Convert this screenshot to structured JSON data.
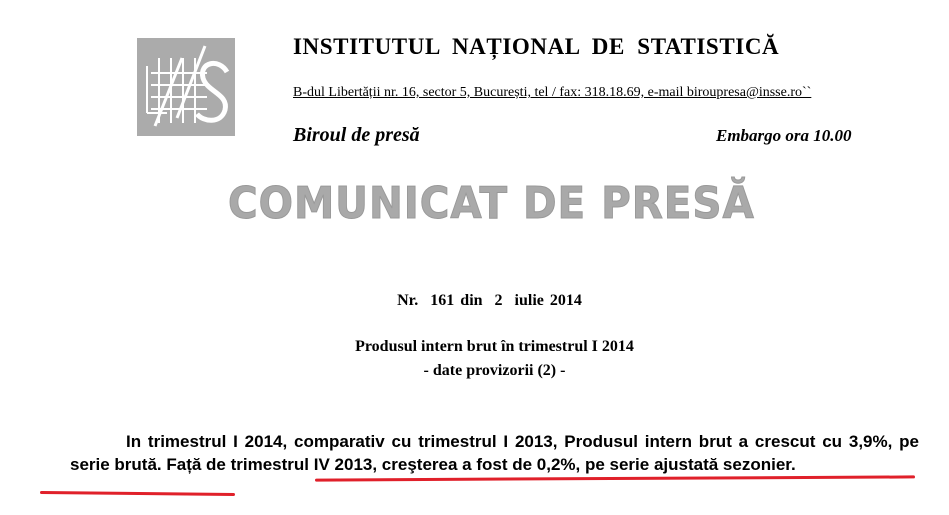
{
  "header": {
    "logo_text": "INS",
    "institution": "INSTITUTUL NAȚIONAL DE STATISTICĂ",
    "address": "B-dul Libertății nr. 16, sector 5, București, tel / fax: 318.18.69, e-mail biroupresa@insse.ro``",
    "office": "Biroul de presă",
    "embargo": "Embargo ora 10.00"
  },
  "banner": "COMUNICAT DE PRESĂ",
  "release": {
    "number_line": "Nr.  161 din  2  iulie 2014",
    "subject": "Produsul intern brut în trimestrul I 2014",
    "subtitle": "- date provizorii (2) -"
  },
  "body": {
    "part1": "In trimestrul I 2014, comparativ cu trimestrul I 2013, Produsul intern brut a crescut cu 3,9%, pe serie brută. ",
    "part2": "Față de trimestrul IV 2013, creşterea a fost de 0,2%, pe serie ajustată sezonier."
  },
  "colors": {
    "highlight": "#e0202a",
    "banner_gray": "#a9a9a9",
    "logo_gray": "#ababab"
  }
}
